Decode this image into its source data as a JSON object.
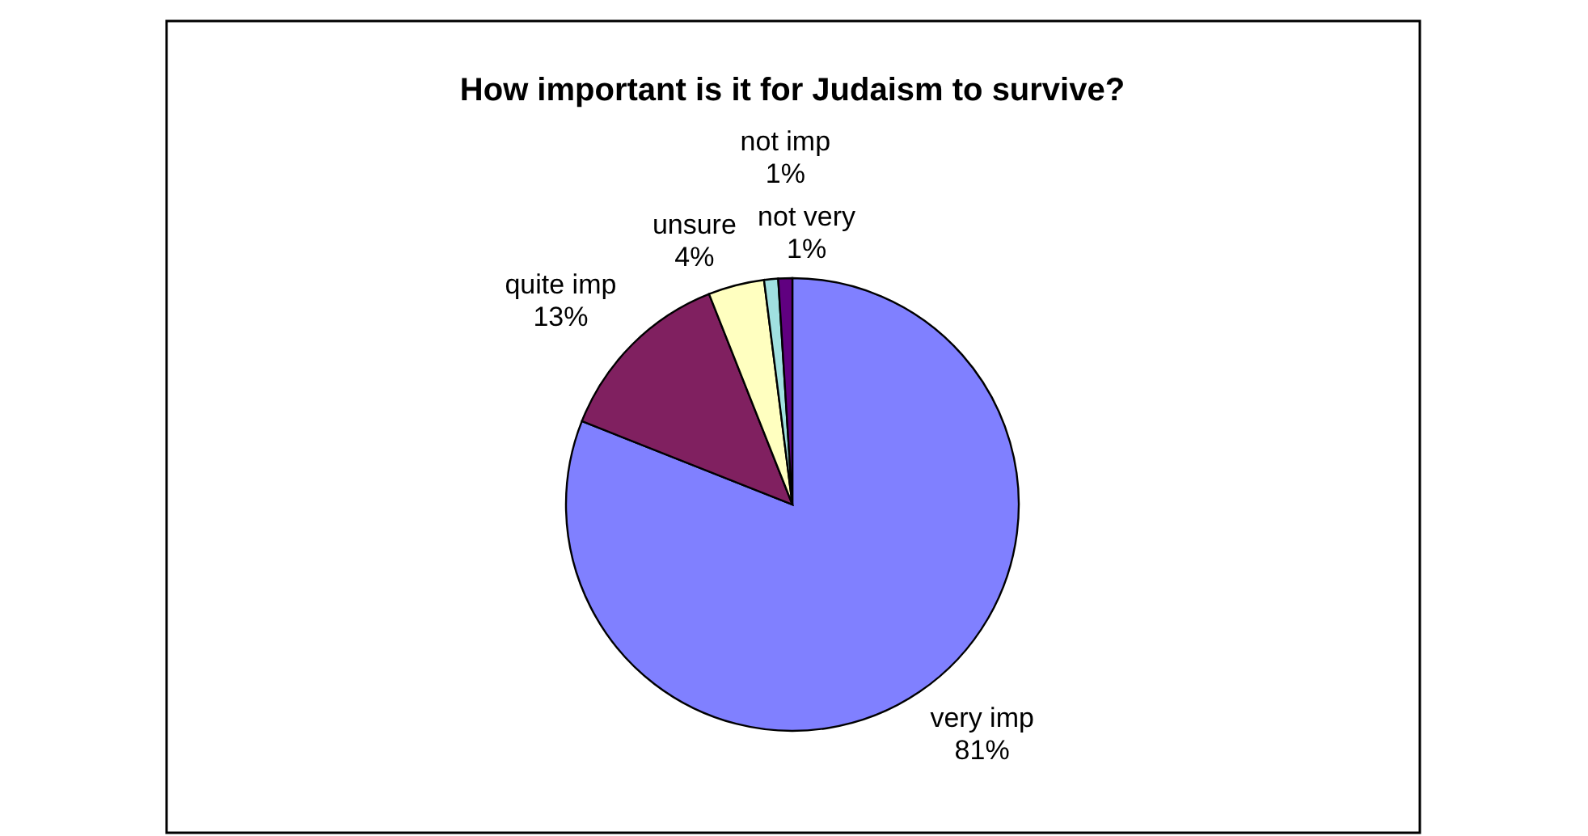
{
  "chart_data": {
    "type": "pie",
    "title": "How important is it for Judaism to survive?",
    "categories": [
      "very imp",
      "quite imp",
      "unsure",
      "not very",
      "not imp"
    ],
    "values": [
      81,
      13,
      4,
      1,
      1
    ],
    "colors": [
      "#8080ff",
      "#802060",
      "#ffffc0",
      "#a0e0e0",
      "#600080"
    ],
    "value_labels": [
      "81%",
      "13%",
      "4%",
      "1%",
      "1%"
    ]
  }
}
